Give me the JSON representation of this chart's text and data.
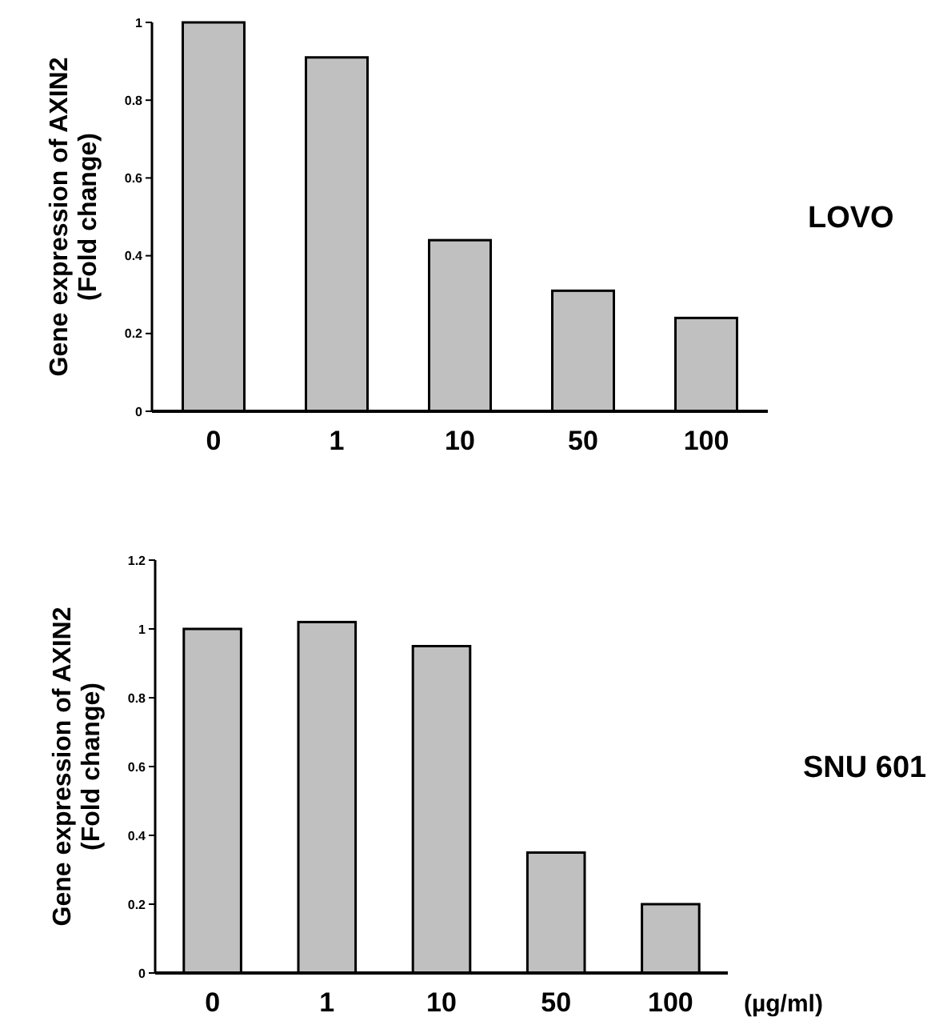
{
  "chart_data": [
    {
      "type": "bar",
      "annotations": [
        "LOVO"
      ],
      "ylabel": "Gene expression of AXIN2\n(Fold change)",
      "categories": [
        "0",
        "1",
        "10",
        "50",
        "100"
      ],
      "values": [
        1,
        0.91,
        0.44,
        0.31,
        0.24
      ],
      "color": "#c0c0c0",
      "ylim": [
        0,
        1
      ],
      "yticks": [
        0,
        0.2,
        0.4,
        0.6,
        0.8,
        1
      ],
      "grid": false
    },
    {
      "type": "bar",
      "annotations": [
        "SNU 601"
      ],
      "ylabel": "Gene expression of AXIN2\n(Fold change)",
      "xlabel": "(µg/ml)",
      "categories": [
        "0",
        "1",
        "10",
        "50",
        "100"
      ],
      "values": [
        1,
        1.02,
        0.95,
        0.35,
        0.2
      ],
      "color": "#c0c0c0",
      "ylim": [
        0,
        1.2
      ],
      "yticks": [
        0,
        0.2,
        0.4,
        0.6,
        0.8,
        1,
        1.2
      ],
      "grid": false
    }
  ]
}
